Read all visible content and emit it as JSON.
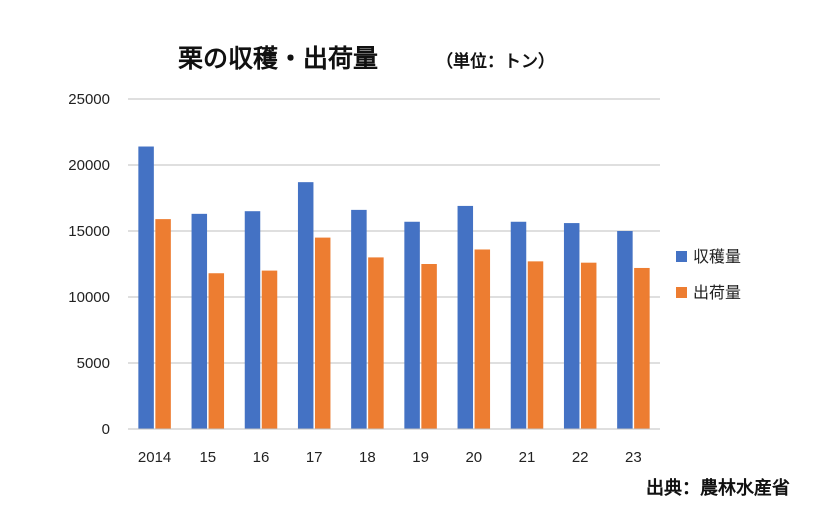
{
  "chart_data": {
    "type": "bar",
    "title": "栗の収穫・出荷量",
    "title_unit": "（単位：トン）",
    "categories": [
      "2014",
      "15",
      "16",
      "17",
      "18",
      "19",
      "20",
      "21",
      "22",
      "23"
    ],
    "series": [
      {
        "name": "収穫量",
        "color": "#4472C4",
        "values": [
          21400,
          16300,
          16500,
          18700,
          16600,
          15700,
          16900,
          15700,
          15600,
          15000
        ]
      },
      {
        "name": "出荷量",
        "color": "#ED7D31",
        "values": [
          15900,
          11800,
          12000,
          14500,
          13000,
          12500,
          13600,
          12700,
          12600,
          12200
        ]
      }
    ],
    "ylim": [
      0,
      25000
    ],
    "yticks": [
      0,
      5000,
      10000,
      15000,
      20000,
      25000
    ],
    "grid": true,
    "legend_position": "right",
    "source": "出典：農林水産省"
  }
}
